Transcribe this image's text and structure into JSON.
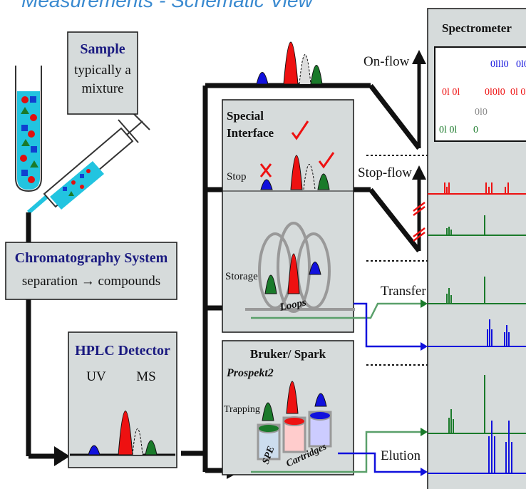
{
  "header": {
    "partial_title": "Measurements - Schematic View"
  },
  "sample_box": {
    "title": "Sample",
    "line1": "typically a",
    "line2": "mixture"
  },
  "chromatography": {
    "title": "Chromatography System",
    "subtitle": "separation → compounds"
  },
  "hplc": {
    "title": "HPLC Detector",
    "uv": "UV",
    "ms": "MS"
  },
  "special_interface": {
    "title_line1": "Special",
    "title_line2": "Interface",
    "stop": "Stop",
    "storage": "Storage",
    "loops": "Loops"
  },
  "bruker": {
    "title": "Bruker/ Spark",
    "subtitle": "Prospekt2",
    "trapping": "Trapping",
    "spe": "SPE",
    "cartridges": "Cartridges"
  },
  "modes": {
    "on_flow": "On-flow",
    "stop_flow": "Stop-flow",
    "transfer": "Transfer",
    "elution": "Elution"
  },
  "spectrometer": {
    "title": "Spectrometer"
  },
  "colors": {
    "blue": "#1111dd",
    "red": "#ee1111",
    "green": "#1a7a2a",
    "gray": "#999999",
    "panel": "#d6dbdb",
    "navy": "#1a1a80"
  }
}
